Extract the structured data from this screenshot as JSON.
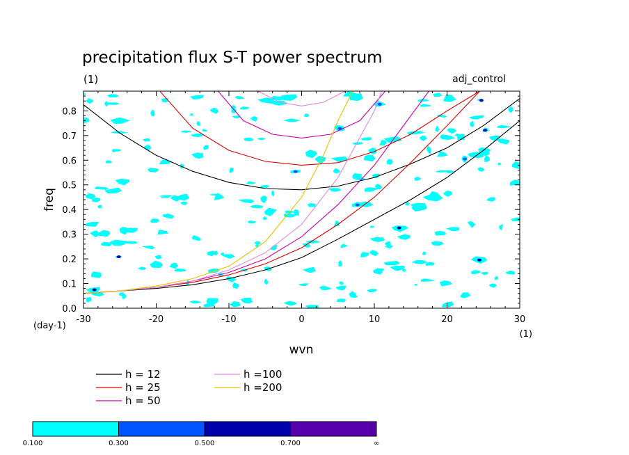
{
  "chart_data": {
    "type": "line",
    "title": "precipitation flux S-T power spectrum",
    "subtitle_left": "(1)",
    "subtitle_right": "adj_control",
    "xlabel": "wvn",
    "ylabel": "freq",
    "x_unit": "(1)",
    "y_unit": "(day-1)",
    "xlim": [
      -30,
      30
    ],
    "ylim": [
      0.0,
      0.88
    ],
    "x_ticks": [
      -30,
      -20,
      -10,
      0,
      10,
      20,
      30
    ],
    "x_tick_labels": [
      "-30",
      "-20",
      "-10",
      "0",
      "10",
      "20",
      "30"
    ],
    "y_ticks": [
      0.0,
      0.1,
      0.2,
      0.3,
      0.4,
      0.5,
      0.6,
      0.7,
      0.8
    ],
    "y_tick_labels": [
      "0.0",
      "0.1",
      "0.2",
      "0.3",
      "0.4",
      "0.5",
      "0.6",
      "0.7",
      "0.8"
    ],
    "grid": false,
    "legend_placement": "below plot",
    "series": [
      {
        "name": "h = 12",
        "color": "#000000",
        "curves": [
          {
            "x": [
              -30,
              -25,
              -20,
              -15,
              -10,
              -5,
              0,
              5,
              10,
              15,
              20,
              25,
              30
            ],
            "y": [
              0.825,
              0.71,
              0.62,
              0.555,
              0.51,
              0.485,
              0.48,
              0.495,
              0.53,
              0.585,
              0.65,
              0.74,
              0.85
            ]
          },
          {
            "x": [
              -30,
              -25,
              -20,
              -15,
              -10,
              -5,
              0,
              5,
              10,
              15,
              20,
              25,
              30
            ],
            "y": [
              0.06,
              0.07,
              0.08,
              0.095,
              0.12,
              0.155,
              0.205,
              0.28,
              0.36,
              0.44,
              0.53,
              0.64,
              0.76
            ]
          }
        ]
      },
      {
        "name": "h = 25",
        "color": "#dd0000",
        "curves": [
          {
            "x": [
              -19.5,
              -15,
              -10,
              -5,
              0,
              5,
              10,
              15,
              20,
              24.5
            ],
            "y": [
              0.88,
              0.73,
              0.64,
              0.595,
              0.58,
              0.59,
              0.635,
              0.705,
              0.8,
              0.88
            ]
          },
          {
            "x": [
              -30,
              -25,
              -20,
              -15,
              -10,
              -5,
              0,
              5,
              10,
              15,
              20,
              24.5
            ],
            "y": [
              0.06,
              0.07,
              0.085,
              0.105,
              0.135,
              0.18,
              0.245,
              0.34,
              0.45,
              0.59,
              0.74,
              0.88
            ]
          }
        ]
      },
      {
        "name": "h = 50",
        "color": "#cc00aa",
        "curves": [
          {
            "x": [
              -11.5,
              -8,
              -4,
              0,
              4,
              8,
              11.5
            ],
            "y": [
              0.88,
              0.76,
              0.705,
              0.69,
              0.705,
              0.76,
              0.88
            ]
          },
          {
            "x": [
              -30,
              -25,
              -20,
              -15,
              -10,
              -5,
              0,
              5,
              10,
              15,
              17.5
            ],
            "y": [
              0.06,
              0.07,
              0.085,
              0.11,
              0.145,
              0.2,
              0.29,
              0.42,
              0.58,
              0.78,
              0.88
            ]
          }
        ]
      },
      {
        "name": "h =100",
        "color": "#e088e0",
        "curves": [
          {
            "x": [
              -6,
              -3,
              0,
              3,
              6
            ],
            "y": [
              0.88,
              0.835,
              0.82,
              0.835,
              0.88
            ]
          },
          {
            "x": [
              -30,
              -25,
              -20,
              -15,
              -10,
              -5,
              0,
              5,
              10,
              11
            ],
            "y": [
              0.06,
              0.07,
              0.085,
              0.11,
              0.155,
              0.225,
              0.34,
              0.53,
              0.8,
              0.88
            ]
          }
        ]
      },
      {
        "name": "h =200",
        "color": "#e8c000",
        "curves": [
          {
            "x": [
              -30,
              -25,
              -20,
              -15,
              -10,
              -5,
              0,
              3,
              5,
              7
            ],
            "y": [
              0.06,
              0.07,
              0.09,
              0.12,
              0.17,
              0.27,
              0.45,
              0.62,
              0.76,
              0.88
            ]
          }
        ]
      }
    ],
    "shading": {
      "pattern": "noisy scattered patches of power",
      "levels": [
        "0.100",
        "0.300",
        "0.500",
        "0.700",
        "∞"
      ],
      "colors": [
        "#00ffff",
        "#0055ff",
        "#0000aa",
        "#5500aa"
      ]
    }
  }
}
